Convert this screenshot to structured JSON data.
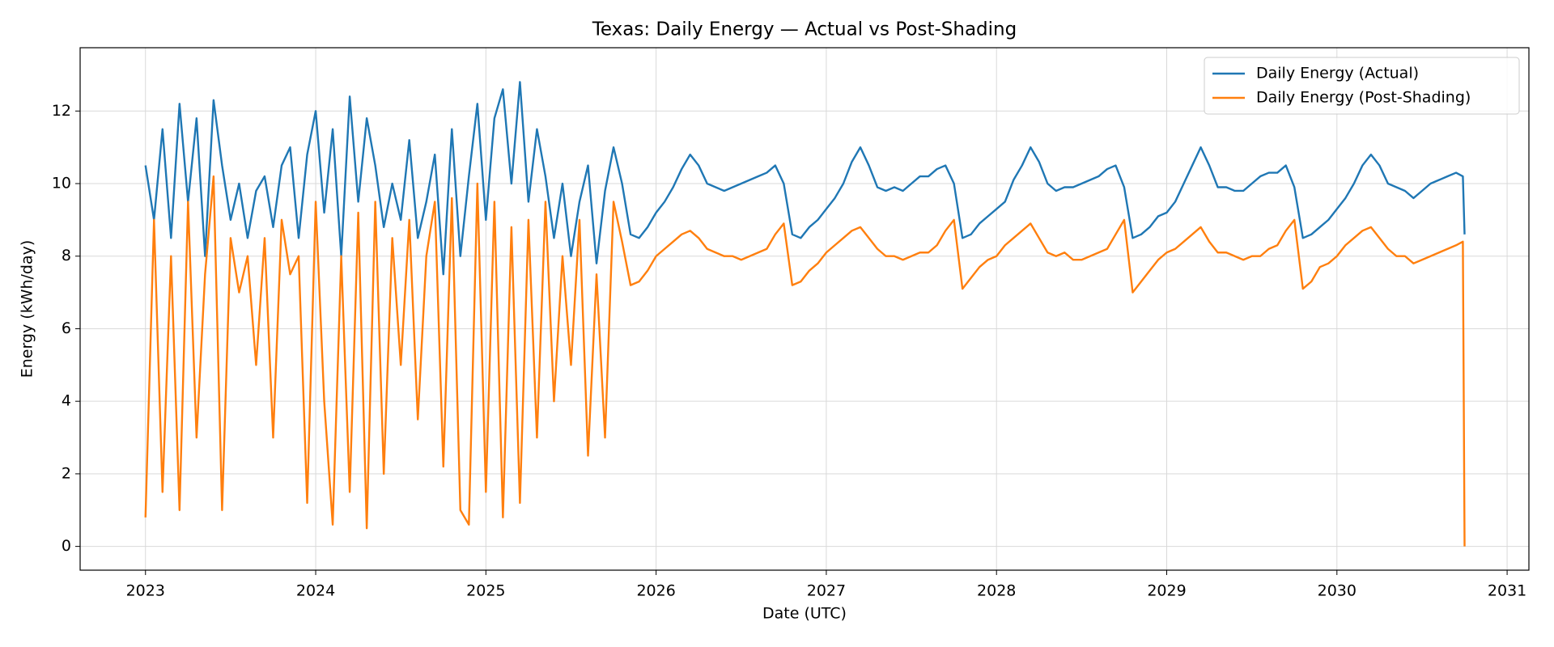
{
  "chart_data": {
    "type": "line",
    "title": "Texas: Daily Energy — Actual vs Post-Shading",
    "x_label": "Date (UTC)",
    "y_label": "Energy (kWh/day)",
    "xlim": [
      2022.616,
      2031.128
    ],
    "xticks": [
      2023,
      2024,
      2025,
      2026,
      2027,
      2028,
      2029,
      2030,
      2031
    ],
    "ylim": [
      -0.655,
      13.745
    ],
    "yticks": [
      0,
      2,
      4,
      6,
      8,
      10,
      12
    ],
    "grid": true,
    "legend": "upper right",
    "x": [
      2023.0,
      2023.05,
      2023.1,
      2023.15,
      2023.2,
      2023.25,
      2023.3,
      2023.35,
      2023.4,
      2023.45,
      2023.5,
      2023.55,
      2023.6,
      2023.65,
      2023.7,
      2023.75,
      2023.8,
      2023.85,
      2023.9,
      2023.95,
      2024.0,
      2024.05,
      2024.1,
      2024.15,
      2024.2,
      2024.25,
      2024.3,
      2024.35,
      2024.4,
      2024.45,
      2024.5,
      2024.55,
      2024.6,
      2024.65,
      2024.7,
      2024.75,
      2024.8,
      2024.85,
      2024.9,
      2024.95,
      2025.0,
      2025.05,
      2025.1,
      2025.15,
      2025.2,
      2025.25,
      2025.3,
      2025.35,
      2025.4,
      2025.45,
      2025.5,
      2025.55,
      2025.6,
      2025.65,
      2025.7,
      2025.75,
      2025.8,
      2025.85,
      2025.9,
      2025.95,
      2026.0,
      2026.05,
      2026.1,
      2026.15,
      2026.2,
      2026.25,
      2026.3,
      2026.35,
      2026.4,
      2026.45,
      2026.5,
      2026.55,
      2026.6,
      2026.65,
      2026.7,
      2026.75,
      2026.8,
      2026.85,
      2026.9,
      2026.95,
      2027.0,
      2027.05,
      2027.1,
      2027.15,
      2027.2,
      2027.25,
      2027.3,
      2027.35,
      2027.4,
      2027.45,
      2027.5,
      2027.55,
      2027.6,
      2027.65,
      2027.7,
      2027.75,
      2027.8,
      2027.85,
      2027.9,
      2027.95,
      2028.0,
      2028.05,
      2028.1,
      2028.15,
      2028.2,
      2028.25,
      2028.3,
      2028.35,
      2028.4,
      2028.45,
      2028.5,
      2028.55,
      2028.6,
      2028.65,
      2028.7,
      2028.75,
      2028.8,
      2028.85,
      2028.9,
      2028.95,
      2029.0,
      2029.05,
      2029.1,
      2029.15,
      2029.2,
      2029.25,
      2029.3,
      2029.35,
      2029.4,
      2029.45,
      2029.5,
      2029.55,
      2029.6,
      2029.65,
      2029.7,
      2029.75,
      2029.8,
      2029.85,
      2029.9,
      2029.95,
      2030.0,
      2030.05,
      2030.1,
      2030.15,
      2030.2,
      2030.25,
      2030.3,
      2030.35,
      2030.4,
      2030.45,
      2030.5,
      2030.55,
      2030.6,
      2030.65,
      2030.7,
      2030.74,
      2030.75
    ],
    "series": [
      {
        "name": "Daily Energy (Actual)",
        "color": "#1f77b4",
        "values": [
          10.5,
          9.0,
          11.5,
          8.5,
          12.2,
          9.5,
          11.8,
          8.0,
          12.3,
          10.5,
          9.0,
          10.0,
          8.5,
          9.8,
          10.2,
          8.8,
          10.5,
          11.0,
          8.5,
          10.8,
          12.0,
          9.2,
          11.5,
          8.0,
          12.4,
          9.5,
          11.8,
          10.5,
          8.8,
          10.0,
          9.0,
          11.2,
          8.5,
          9.5,
          10.8,
          7.5,
          11.5,
          8.0,
          10.2,
          12.2,
          9.0,
          11.8,
          12.6,
          10.0,
          12.8,
          9.5,
          11.5,
          10.2,
          8.5,
          10.0,
          8.0,
          9.5,
          10.5,
          7.8,
          9.8,
          11.0,
          10.0,
          8.6,
          8.5,
          8.8,
          9.2,
          9.5,
          9.9,
          10.4,
          10.8,
          10.5,
          10.0,
          9.9,
          9.8,
          9.9,
          10.0,
          10.1,
          10.2,
          10.3,
          10.5,
          10.0,
          8.6,
          8.5,
          8.8,
          9.0,
          9.3,
          9.6,
          10.0,
          10.6,
          11.0,
          10.5,
          9.9,
          9.8,
          9.9,
          9.8,
          10.0,
          10.2,
          10.2,
          10.4,
          10.5,
          10.0,
          8.5,
          8.6,
          8.9,
          9.1,
          9.3,
          9.5,
          10.1,
          10.5,
          11.0,
          10.6,
          10.0,
          9.8,
          9.9,
          9.9,
          10.0,
          10.1,
          10.2,
          10.4,
          10.5,
          9.9,
          8.5,
          8.6,
          8.8,
          9.1,
          9.2,
          9.5,
          10.0,
          10.5,
          11.0,
          10.5,
          9.9,
          9.9,
          9.8,
          9.8,
          10.0,
          10.2,
          10.3,
          10.3,
          10.5,
          9.9,
          8.5,
          8.6,
          8.8,
          9.0,
          9.3,
          9.6,
          10.0,
          10.5,
          10.8,
          10.5,
          10.0,
          9.9,
          9.8,
          9.6,
          9.8,
          10.0,
          10.1,
          10.2,
          10.3,
          10.2,
          8.6
        ]
      },
      {
        "name": "Daily Energy (Post-Shading)",
        "color": "#ff7f0e",
        "values": [
          0.8,
          9.0,
          1.5,
          8.0,
          1.0,
          9.5,
          3.0,
          7.5,
          10.2,
          1.0,
          8.5,
          7.0,
          8.0,
          5.0,
          8.5,
          3.0,
          9.0,
          7.5,
          8.0,
          1.2,
          9.5,
          4.0,
          0.6,
          8.0,
          1.5,
          9.2,
          0.5,
          9.5,
          2.0,
          8.5,
          5.0,
          9.0,
          3.5,
          8.0,
          9.5,
          2.2,
          9.6,
          1.0,
          0.6,
          10.0,
          1.5,
          9.5,
          0.8,
          8.8,
          1.2,
          9.0,
          3.0,
          9.5,
          4.0,
          8.0,
          5.0,
          9.0,
          2.5,
          7.5,
          3.0,
          9.5,
          8.4,
          7.2,
          7.3,
          7.6,
          8.0,
          8.2,
          8.4,
          8.6,
          8.7,
          8.5,
          8.2,
          8.1,
          8.0,
          8.0,
          7.9,
          8.0,
          8.1,
          8.2,
          8.6,
          8.9,
          7.2,
          7.3,
          7.6,
          7.8,
          8.1,
          8.3,
          8.5,
          8.7,
          8.8,
          8.5,
          8.2,
          8.0,
          8.0,
          7.9,
          8.0,
          8.1,
          8.1,
          8.3,
          8.7,
          9.0,
          7.1,
          7.4,
          7.7,
          7.9,
          8.0,
          8.3,
          8.5,
          8.7,
          8.9,
          8.5,
          8.1,
          8.0,
          8.1,
          7.9,
          7.9,
          8.0,
          8.1,
          8.2,
          8.6,
          9.0,
          7.0,
          7.3,
          7.6,
          7.9,
          8.1,
          8.2,
          8.4,
          8.6,
          8.8,
          8.4,
          8.1,
          8.1,
          8.0,
          7.9,
          8.0,
          8.0,
          8.2,
          8.3,
          8.7,
          9.0,
          7.1,
          7.3,
          7.7,
          7.8,
          8.0,
          8.3,
          8.5,
          8.7,
          8.8,
          8.5,
          8.2,
          8.0,
          8.0,
          7.8,
          7.9,
          8.0,
          8.1,
          8.2,
          8.3,
          8.4,
          0.0
        ]
      }
    ]
  }
}
